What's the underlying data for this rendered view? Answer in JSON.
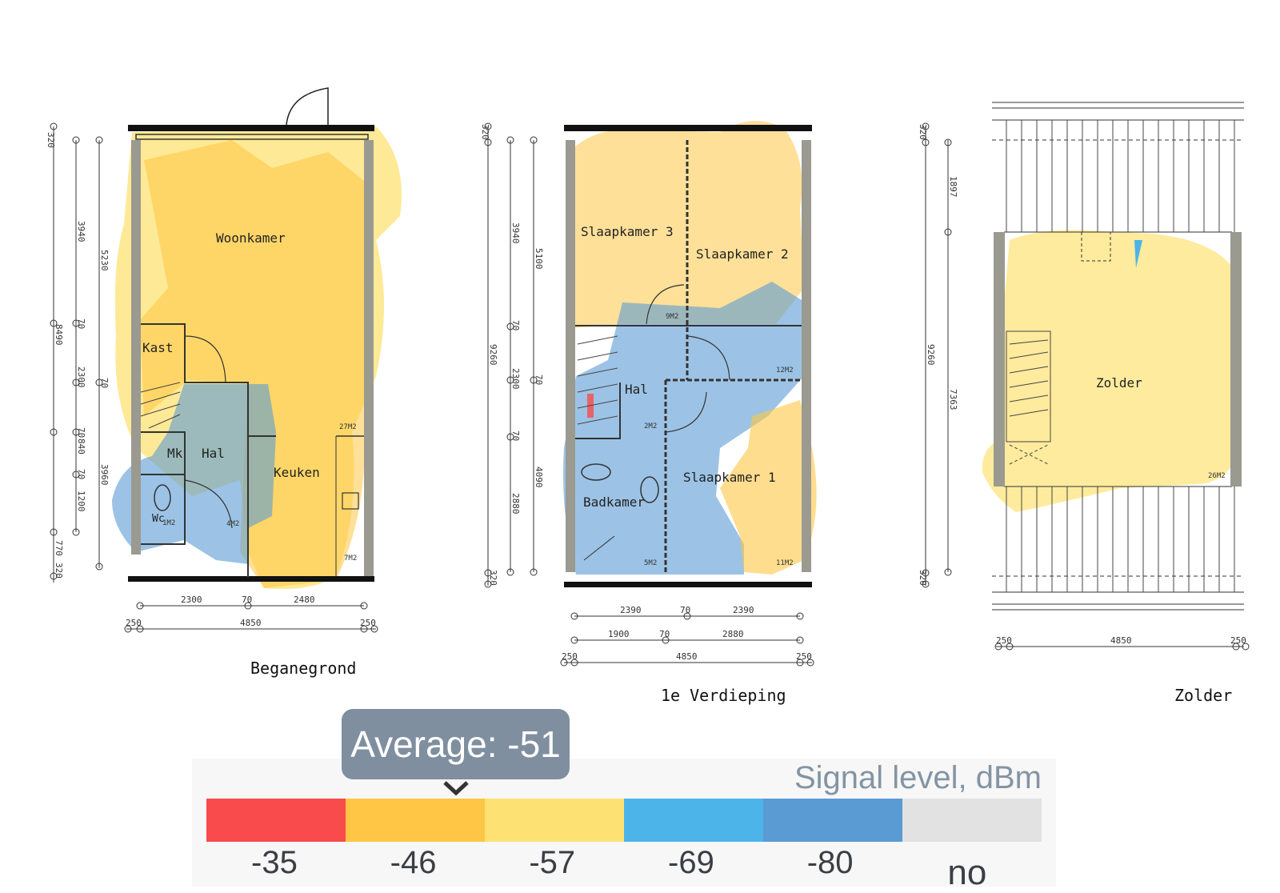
{
  "floors": [
    {
      "title": "Beganegrond",
      "rooms": [
        "Woonkamer",
        "Kast",
        "Hal",
        "Mk",
        "Keuken",
        "Wc"
      ],
      "areas": [
        "27M2",
        "4M2",
        "1M2",
        "7M2"
      ],
      "dims_h": [
        "2300",
        "70",
        "2480",
        "250",
        "4850",
        "250"
      ],
      "dims_v": [
        "320",
        "3940",
        "5230",
        "70",
        "8490",
        "2300",
        "70",
        "70",
        "840",
        "70",
        "1200",
        "3960",
        "770",
        "320"
      ]
    },
    {
      "title": "1e Verdieping",
      "rooms": [
        "Slaapkamer 3",
        "Slaapkamer 2",
        "Hal",
        "Badkamer",
        "Slaapkamer 1"
      ],
      "areas": [
        "9M2",
        "12M2",
        "2M2",
        "5M2",
        "11M2"
      ],
      "dims_h": [
        "2390",
        "70",
        "2390",
        "1900",
        "70",
        "2880",
        "250",
        "4850",
        "250"
      ],
      "dims_v": [
        "320",
        "3940",
        "5100",
        "70",
        "9260",
        "2300",
        "70",
        "70",
        "4090",
        "2880",
        "320"
      ]
    },
    {
      "title": "Zolder",
      "rooms": [
        "Zolder"
      ],
      "areas": [
        "26M2"
      ],
      "dims_h": [
        "250",
        "4850",
        "250"
      ],
      "dims_v": [
        "320",
        "1897",
        "9260",
        "7363",
        "320"
      ]
    }
  ],
  "legend": {
    "title": "Signal level, dBm",
    "average_label": "Average: -51",
    "average_value": -51,
    "scale": [
      {
        "label": "-35",
        "color": "#f94b4b"
      },
      {
        "label": "-46",
        "color": "#fec644"
      },
      {
        "label": "-57",
        "color": "#fde273"
      },
      {
        "label": "-69",
        "color": "#4cb4e8"
      },
      {
        "label": "-80",
        "color": "#5a9bd4"
      },
      {
        "label": "no",
        "color": "#e2e2e2"
      }
    ]
  },
  "heat_colors": {
    "yellow": "#fde273",
    "orange": "#fec644",
    "blue": "#5a9bd4",
    "light_blue": "#4cb4e8",
    "red": "#f94b4b"
  }
}
